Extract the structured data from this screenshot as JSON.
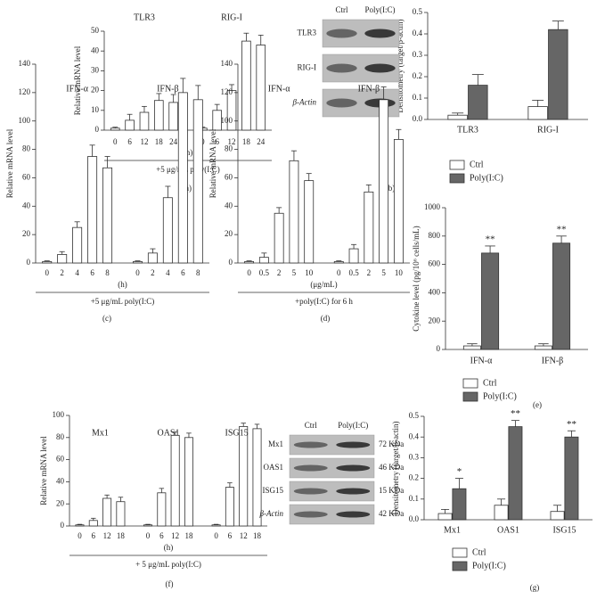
{
  "chart_data": [
    {
      "type": "bar",
      "panel": "(a)",
      "ylabel": "Relative mRNA level",
      "ylim": [
        0,
        50
      ],
      "yticks": [
        0,
        10,
        20,
        30,
        40,
        50
      ],
      "groups": [
        {
          "name": "TLR3",
          "categories": [
            "0",
            "6",
            "12",
            "18",
            "24"
          ],
          "values": [
            1,
            5,
            9,
            15,
            14
          ],
          "errors": [
            0.5,
            3,
            3,
            3.5,
            4
          ]
        },
        {
          "name": "RIG-I",
          "categories": [
            "0",
            "6",
            "12",
            "18",
            "24"
          ],
          "values": [
            1,
            10,
            20,
            45,
            43
          ],
          "errors": [
            0.5,
            3,
            3,
            4,
            5
          ]
        }
      ],
      "xlabel": "(h)",
      "condition": "+5 μg/mL poly(I:C)"
    },
    {
      "type": "grouped-bar",
      "panel": "(b)",
      "ylabel": "Densitometry (target/β-actin)",
      "ylim": [
        0,
        0.5
      ],
      "yticks": [
        {
          "value": 0,
          "label": "0.0"
        },
        0.1,
        0.2,
        0.3,
        0.4,
        0.5
      ],
      "categories": [
        "TLR3",
        "RIG-I"
      ],
      "series": [
        {
          "name": "Ctrl",
          "color": "#ffffff",
          "values": [
            0.02,
            0.06
          ],
          "errors": [
            0.01,
            0.03
          ]
        },
        {
          "name": "Poly(I:C)",
          "color": "#666666",
          "values": [
            0.16,
            0.42
          ],
          "errors": [
            0.05,
            0.04
          ]
        }
      ],
      "blot": {
        "columns": [
          "Ctrl",
          "Poly(I:C)"
        ],
        "rows": [
          {
            "label": "TLR3"
          },
          {
            "label": "RIG-I"
          },
          {
            "label": "β-Actin"
          }
        ]
      }
    },
    {
      "type": "bar",
      "panel": "(c)",
      "ylabel": "Relative mRNA level",
      "ylim": [
        0,
        140
      ],
      "yticks": [
        0,
        20,
        40,
        60,
        80,
        100,
        120,
        140
      ],
      "groups": [
        {
          "name": "IFN-α",
          "categories": [
            "0",
            "2",
            "4",
            "6",
            "8"
          ],
          "values": [
            1,
            6,
            25,
            75,
            67
          ],
          "errors": [
            0.5,
            2,
            4,
            8,
            8
          ]
        },
        {
          "name": "IFN-β",
          "categories": [
            "0",
            "2",
            "4",
            "6",
            "8"
          ],
          "values": [
            1,
            7,
            46,
            120,
            115
          ],
          "errors": [
            0.5,
            3,
            8,
            10,
            10
          ]
        }
      ],
      "xlabel": "(h)",
      "condition": "+5 μg/mL poly(I:C)"
    },
    {
      "type": "bar",
      "panel": "(d)",
      "ylabel": "Relative mRNA level",
      "ylim": [
        0,
        140
      ],
      "yticks": [
        0,
        20,
        40,
        60,
        80,
        100,
        120,
        140
      ],
      "groups": [
        {
          "name": "IFN-α",
          "categories": [
            "0",
            "0.5",
            "2",
            "5",
            "10"
          ],
          "values": [
            1,
            4,
            35,
            72,
            58
          ],
          "errors": [
            0.5,
            3,
            4,
            7,
            5
          ]
        },
        {
          "name": "IFN-β",
          "categories": [
            "0",
            "0.5",
            "2",
            "5",
            "10"
          ],
          "values": [
            1,
            10,
            50,
            115,
            87
          ],
          "errors": [
            0.5,
            3,
            5,
            9,
            7
          ]
        }
      ],
      "xlabel": "(μg/mL)",
      "condition": "+poly(I:C) for 6 h"
    },
    {
      "type": "grouped-bar",
      "panel": "(e)",
      "ylabel": "Cytokine level (pg/10⁶ cells/mL)",
      "ylim": [
        0,
        1000
      ],
      "yticks": [
        0,
        200,
        400,
        600,
        800,
        1000
      ],
      "categories": [
        "IFN-α",
        "IFN-β"
      ],
      "series": [
        {
          "name": "Ctrl",
          "color": "#ffffff",
          "values": [
            25,
            25
          ],
          "errors": [
            15,
            15
          ]
        },
        {
          "name": "Poly(I:C)",
          "color": "#666666",
          "values": [
            680,
            750
          ],
          "errors": [
            50,
            50
          ]
        }
      ],
      "annotations": [
        "**",
        "**"
      ]
    },
    {
      "type": "bar",
      "panel": "(f)",
      "ylabel": "Relative mRNA level",
      "ylim": [
        0,
        100
      ],
      "yticks": [
        0,
        20,
        40,
        60,
        80,
        100
      ],
      "groups": [
        {
          "name": "Mx1",
          "categories": [
            "0",
            "6",
            "12",
            "18"
          ],
          "values": [
            1,
            5,
            25,
            22
          ],
          "errors": [
            0.5,
            2,
            3,
            4
          ]
        },
        {
          "name": "OAS1",
          "categories": [
            "0",
            "6",
            "12",
            "18"
          ],
          "values": [
            1,
            30,
            82,
            80
          ],
          "errors": [
            0.5,
            4,
            3,
            4
          ]
        },
        {
          "name": "ISG15",
          "categories": [
            "0",
            "6",
            "12",
            "18"
          ],
          "values": [
            1,
            35,
            90,
            88
          ],
          "errors": [
            0.5,
            4,
            3,
            4
          ]
        }
      ],
      "xlabel": "(h)",
      "condition": "+ 5 μg/mL poly(I:C)"
    },
    {
      "type": "grouped-bar",
      "panel": "(g)",
      "ylabel": "Densitometry (target/β-actin)",
      "ylim": [
        0,
        0.5
      ],
      "yticks": [
        {
          "value": 0,
          "label": "0.0"
        },
        0.1,
        0.2,
        0.3,
        0.4,
        0.5
      ],
      "categories": [
        "Mx1",
        "OAS1",
        "ISG15"
      ],
      "series": [
        {
          "name": "Ctrl",
          "color": "#ffffff",
          "values": [
            0.03,
            0.07,
            0.04
          ],
          "errors": [
            0.02,
            0.03,
            0.03
          ]
        },
        {
          "name": "Poly(I:C)",
          "color": "#666666",
          "values": [
            0.15,
            0.45,
            0.4
          ],
          "errors": [
            0.05,
            0.03,
            0.03
          ]
        }
      ],
      "annotations": [
        "*",
        "**",
        "**"
      ],
      "blot": {
        "columns": [
          "Ctrl",
          "Poly(I:C)"
        ],
        "rows": [
          {
            "label": "Mx1",
            "size": "72 KDa"
          },
          {
            "label": "OAS1",
            "size": "46 KDa"
          },
          {
            "label": "ISG15",
            "size": "15 KDa"
          },
          {
            "label": "β-Actin",
            "size": "42 KDa"
          }
        ]
      }
    }
  ]
}
